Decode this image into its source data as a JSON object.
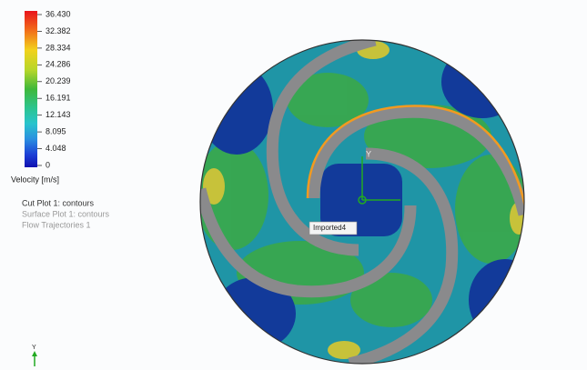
{
  "legend": {
    "ticks": [
      "36.430",
      "32.382",
      "28.334",
      "24.286",
      "20.239",
      "16.191",
      "12.143",
      "8.095",
      "4.048",
      "0"
    ],
    "title": "Velocity [m/s]"
  },
  "plots": [
    "Cut Plot 1: contours",
    "Surface Plot 1: contours",
    "Flow Trajectories 1"
  ],
  "part_label": "Imported4",
  "origin_triad_label": "Y",
  "view_triad_label": "Y"
}
